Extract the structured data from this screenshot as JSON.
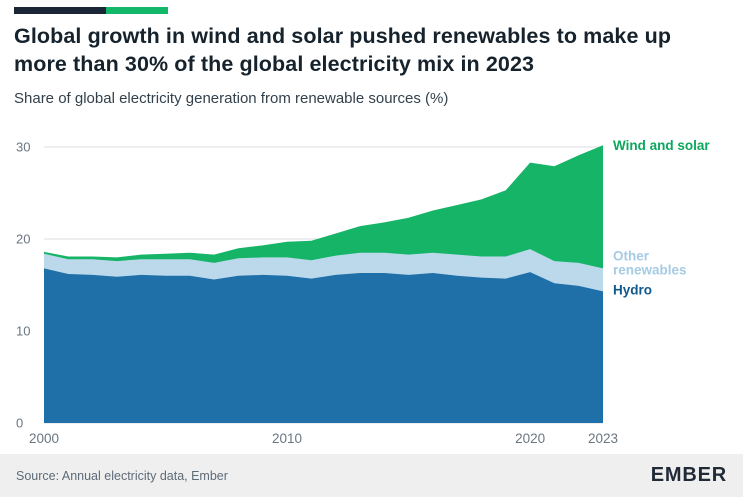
{
  "header": {
    "title": "Global growth in wind and solar pushed renewables to make up more than 30% of the global electricity mix in 2023",
    "subtitle": "Share of global electricity generation from renewable sources (%)"
  },
  "footer": {
    "source": "Source: Annual electricity data, Ember",
    "logo": "EMBER"
  },
  "colors": {
    "accent_navy": "#1b2637",
    "accent_green": "#12b76a",
    "grid": "#d9dde2",
    "axis_text": "#6a7682"
  },
  "chart_data": {
    "type": "area",
    "stacked": true,
    "title": "Share of global electricity generation from renewable sources (%)",
    "x": [
      2000,
      2001,
      2002,
      2003,
      2004,
      2005,
      2006,
      2007,
      2008,
      2009,
      2010,
      2011,
      2012,
      2013,
      2014,
      2015,
      2016,
      2017,
      2018,
      2019,
      2020,
      2021,
      2022,
      2023
    ],
    "series": [
      {
        "name": "Hydro",
        "color": "#1f6fa8",
        "label_color": "#10598c",
        "label_lines": [
          "Hydro"
        ],
        "values": [
          16.8,
          16.2,
          16.1,
          15.9,
          16.1,
          16.0,
          16.0,
          15.6,
          16.0,
          16.1,
          16.0,
          15.7,
          16.1,
          16.3,
          16.3,
          16.1,
          16.3,
          16.0,
          15.8,
          15.7,
          16.4,
          15.2,
          14.9,
          14.3
        ]
      },
      {
        "name": "Other renewables",
        "color": "#bcd9ec",
        "label_color": "#a6cbe4",
        "label_lines": [
          "Other",
          "renewables"
        ],
        "values": [
          1.6,
          1.6,
          1.7,
          1.7,
          1.7,
          1.8,
          1.8,
          1.8,
          1.9,
          1.9,
          2.0,
          2.0,
          2.1,
          2.2,
          2.2,
          2.2,
          2.2,
          2.3,
          2.3,
          2.4,
          2.5,
          2.4,
          2.5,
          2.5
        ]
      },
      {
        "name": "Wind and solar",
        "color": "#15b467",
        "label_color": "#0ca75d",
        "label_lines": [
          "Wind and solar"
        ],
        "values": [
          0.2,
          0.3,
          0.3,
          0.4,
          0.5,
          0.6,
          0.7,
          0.9,
          1.1,
          1.3,
          1.7,
          2.1,
          2.4,
          2.9,
          3.3,
          4.0,
          4.6,
          5.4,
          6.2,
          7.2,
          9.4,
          10.3,
          11.7,
          13.4
        ]
      }
    ],
    "ylim": [
      0,
      30
    ],
    "yticks": [
      0,
      10,
      20,
      30
    ],
    "xticks": [
      2000,
      2010,
      2020,
      2023
    ],
    "grid": "horizontal-only",
    "legend_position": "right-inline"
  }
}
